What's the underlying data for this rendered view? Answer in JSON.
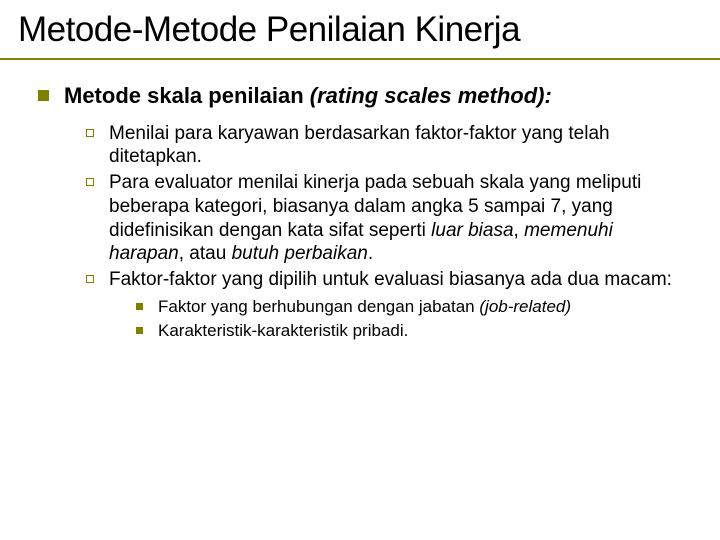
{
  "colors": {
    "accent": "#808000",
    "text": "#000000",
    "background": "#ffffff"
  },
  "title": "Metode-Metode Penilaian Kinerja",
  "heading": {
    "plain": "Metode skala penilaian ",
    "italic": "(rating scales method):"
  },
  "bullets_level2": [
    "Menilai para karyawan berdasarkan faktor-faktor yang telah ditetapkan.",
    "Para evaluator menilai kinerja pada sebuah skala yang meliputi beberapa kategori, biasanya dalam angka 5 sampai 7, yang didefinisikan dengan kata sifat seperti luar biasa, memenuhi harapan, atau butuh perbaikan.",
    "Faktor-faktor yang dipilih untuk evaluasi biasanya ada dua macam:"
  ],
  "bullet2_italic_phrases": {
    "1": [
      "luar biasa",
      "memenuhi harapan",
      "butuh perbaikan"
    ]
  },
  "bullets_level3": [
    {
      "plain": "Faktor yang berhubungan dengan jabatan ",
      "italic": "(job-related)"
    },
    {
      "plain": "Karakteristik-karakteristik pribadi.",
      "italic": ""
    }
  ],
  "typography": {
    "title_fontsize": 35,
    "level1_fontsize": 22,
    "level2_fontsize": 19,
    "level3_fontsize": 17
  }
}
